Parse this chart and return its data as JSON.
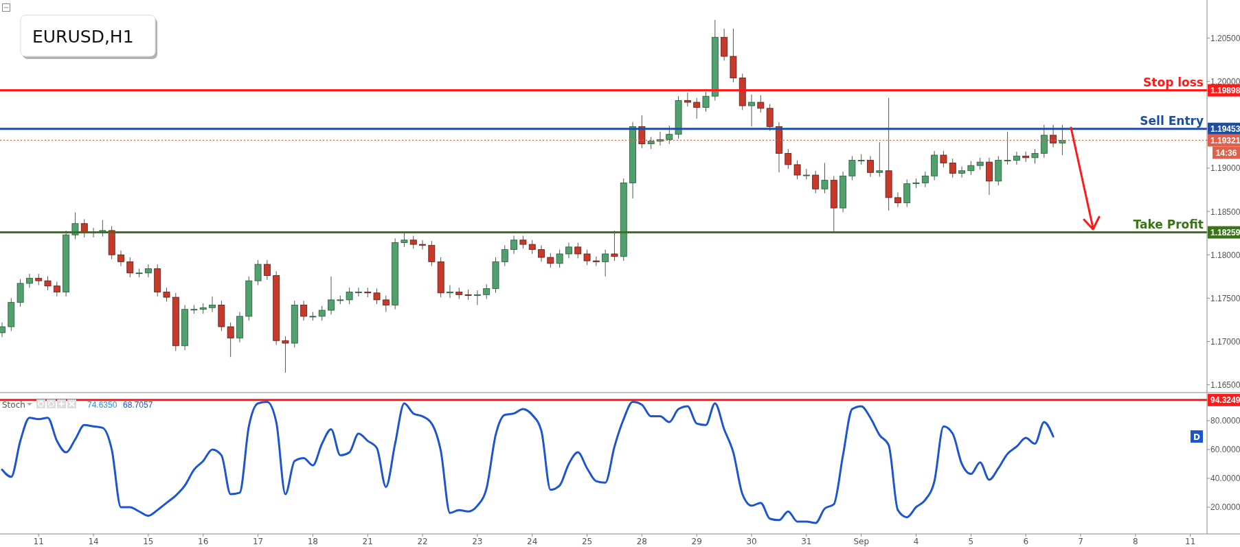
{
  "chart_data": [
    {
      "type": "candlestick",
      "title": "EURUSD,H1",
      "tick_labels": "y",
      "ylim": [
        1.1641,
        1.2094
      ],
      "annotations": [
        "14:36"
      ],
      "categories": [
        null,
        null,
        null,
        null,
        null,
        null,
        null,
        null,
        null,
        null,
        null,
        null,
        null,
        null,
        null,
        null,
        null,
        null,
        null,
        null,
        null,
        null,
        null,
        null,
        null,
        null,
        null,
        null,
        null,
        null,
        null,
        null,
        null,
        null,
        null,
        null,
        null,
        null,
        null,
        null,
        null,
        null,
        null,
        null,
        null,
        null,
        null,
        null,
        null,
        null,
        null,
        null,
        null,
        null,
        null,
        null,
        null,
        null,
        null,
        null,
        null,
        null,
        null,
        null,
        null,
        null,
        null,
        null,
        null,
        null,
        null,
        null,
        null,
        null,
        null,
        null,
        null,
        null,
        null,
        null,
        null,
        null,
        null,
        null,
        null,
        null,
        null,
        null,
        null,
        null,
        null,
        null,
        null,
        null,
        null,
        null,
        null,
        null,
        null,
        null,
        null,
        null,
        null,
        null,
        null,
        null,
        null,
        null,
        null,
        null,
        null,
        null,
        null,
        null,
        null,
        null,
        null,
        null,
        null,
        null,
        null,
        null,
        null,
        null,
        null,
        null,
        null,
        null,
        null,
        null,
        null,
        null
      ],
      "yticks": [
        {
          "value": 1.165,
          "label": "1.16500"
        },
        {
          "value": 1.17,
          "label": "1.17000"
        },
        {
          "value": 1.175,
          "label": "1.17500"
        },
        {
          "value": 1.18,
          "label": "1.18000"
        },
        {
          "value": 1.185,
          "label": "1.18500"
        },
        {
          "value": 1.19,
          "label": "1.19000"
        },
        {
          "value": 1.2,
          "label": "1.20000"
        },
        {
          "value": 1.205,
          "label": "1.20500"
        },
        {
          "value": 1.19898,
          "label": "1.19898"
        },
        {
          "value": 1.19453,
          "label": "1.19453"
        },
        {
          "value": 1.19321,
          "label": "1.19321"
        },
        {
          "value": 1.18259,
          "label": "1.18259"
        }
      ],
      "ref_lines": [
        {
          "axis": "y",
          "value": 1.19898,
          "label": "Stop loss",
          "color": "#ff1a1a"
        },
        {
          "axis": "y",
          "value": 1.19453,
          "label": "Sell Entry",
          "color": "#1d4f9e"
        },
        {
          "axis": "y",
          "value": 1.18259,
          "label": "Take Profit",
          "color": "#3a7417"
        },
        {
          "axis": "y",
          "value": 1.19321,
          "color": "#e0604c",
          "line_style": "dotted"
        }
      ],
      "ohlc": [
        [
          1.171,
          1.1722,
          1.1705,
          1.1717
        ],
        [
          1.1717,
          1.175,
          1.1712,
          1.1745
        ],
        [
          1.1745,
          1.1772,
          1.174,
          1.1767
        ],
        [
          1.1767,
          1.1778,
          1.1762,
          1.1773
        ],
        [
          1.1773,
          1.1778,
          1.1765,
          1.177
        ],
        [
          1.177,
          1.1775,
          1.1759,
          1.1764
        ],
        [
          1.1764,
          1.1769,
          1.1752,
          1.1757
        ],
        [
          1.1757,
          1.1828,
          1.1752,
          1.1823
        ],
        [
          1.1823,
          1.1849,
          1.1818,
          1.1836
        ],
        [
          1.1836,
          1.1841,
          1.182,
          1.1825
        ],
        [
          1.1825,
          1.1831,
          1.182,
          1.1826
        ],
        [
          1.1826,
          1.184,
          1.1821,
          1.1828
        ],
        [
          1.1828,
          1.1833,
          1.1795,
          1.18
        ],
        [
          1.18,
          1.1805,
          1.1787,
          1.1792
        ],
        [
          1.1792,
          1.1797,
          1.1774,
          1.1779
        ],
        [
          1.1779,
          1.1784,
          1.1774,
          1.1779
        ],
        [
          1.1779,
          1.1789,
          1.1774,
          1.1784
        ],
        [
          1.1784,
          1.1789,
          1.1752,
          1.1757
        ],
        [
          1.1757,
          1.1762,
          1.1746,
          1.1751
        ],
        [
          1.1751,
          1.1756,
          1.1689,
          1.1695
        ],
        [
          1.1695,
          1.1742,
          1.169,
          1.1737
        ],
        [
          1.1737,
          1.1742,
          1.1732,
          1.1737
        ],
        [
          1.1737,
          1.1744,
          1.1732,
          1.1739
        ],
        [
          1.1739,
          1.1752,
          1.1734,
          1.1742
        ],
        [
          1.1742,
          1.1747,
          1.1712,
          1.1717
        ],
        [
          1.1717,
          1.1722,
          1.1682,
          1.1704
        ],
        [
          1.1704,
          1.1734,
          1.1699,
          1.1729
        ],
        [
          1.1729,
          1.1775,
          1.1724,
          1.177
        ],
        [
          1.177,
          1.1794,
          1.1765,
          1.1789
        ],
        [
          1.1789,
          1.1794,
          1.1771,
          1.1776
        ],
        [
          1.1776,
          1.1781,
          1.1696,
          1.1701
        ],
        [
          1.1701,
          1.1706,
          1.1664,
          1.1698
        ],
        [
          1.1698,
          1.1747,
          1.1693,
          1.1742
        ],
        [
          1.1742,
          1.1747,
          1.1724,
          1.1729
        ],
        [
          1.1729,
          1.1734,
          1.1724,
          1.1729
        ],
        [
          1.1729,
          1.1741,
          1.1724,
          1.1736
        ],
        [
          1.1736,
          1.1775,
          1.1731,
          1.1748
        ],
        [
          1.1748,
          1.1753,
          1.1743,
          1.1748
        ],
        [
          1.1748,
          1.1762,
          1.1743,
          1.1757
        ],
        [
          1.1757,
          1.1762,
          1.1752,
          1.1757
        ],
        [
          1.1757,
          1.1762,
          1.1751,
          1.1756
        ],
        [
          1.1756,
          1.1761,
          1.1743,
          1.1748
        ],
        [
          1.1748,
          1.1753,
          1.1734,
          1.1742
        ],
        [
          1.1742,
          1.1819,
          1.1737,
          1.1814
        ],
        [
          1.1814,
          1.1826,
          1.1809,
          1.1817
        ],
        [
          1.1817,
          1.1822,
          1.1807,
          1.1812
        ],
        [
          1.1812,
          1.1817,
          1.1806,
          1.1811
        ],
        [
          1.1811,
          1.1816,
          1.1787,
          1.1792
        ],
        [
          1.1792,
          1.1797,
          1.1751,
          1.1756
        ],
        [
          1.1756,
          1.1765,
          1.175,
          1.1757
        ],
        [
          1.1757,
          1.1762,
          1.1749,
          1.1754
        ],
        [
          1.1754,
          1.176,
          1.1748,
          1.1753
        ],
        [
          1.1753,
          1.1759,
          1.1742,
          1.1754
        ],
        [
          1.1754,
          1.1766,
          1.1749,
          1.1761
        ],
        [
          1.1761,
          1.1797,
          1.1756,
          1.1792
        ],
        [
          1.1792,
          1.1811,
          1.1787,
          1.1806
        ],
        [
          1.1806,
          1.1822,
          1.1801,
          1.1817
        ],
        [
          1.1817,
          1.1822,
          1.1807,
          1.1812
        ],
        [
          1.1812,
          1.1817,
          1.1801,
          1.1806
        ],
        [
          1.1806,
          1.1811,
          1.1792,
          1.1797
        ],
        [
          1.1797,
          1.1802,
          1.1785,
          1.179
        ],
        [
          1.179,
          1.1806,
          1.1785,
          1.1801
        ],
        [
          1.1801,
          1.1814,
          1.1796,
          1.1809
        ],
        [
          1.1809,
          1.1814,
          1.1796,
          1.1801
        ],
        [
          1.1801,
          1.1806,
          1.1788,
          1.1793
        ],
        [
          1.1793,
          1.1798,
          1.1787,
          1.1792
        ],
        [
          1.1792,
          1.1806,
          1.1775,
          1.1801
        ],
        [
          1.1801,
          1.1828,
          1.1793,
          1.1798
        ],
        [
          1.1798,
          1.1888,
          1.1793,
          1.1883
        ],
        [
          1.1883,
          1.1953,
          1.1865,
          1.1948
        ],
        [
          1.1948,
          1.1961,
          1.1923,
          1.1928
        ],
        [
          1.1928,
          1.1936,
          1.1922,
          1.1931
        ],
        [
          1.1931,
          1.1942,
          1.1926,
          1.1933
        ],
        [
          1.1933,
          1.1949,
          1.1928,
          1.1939
        ],
        [
          1.1939,
          1.1983,
          1.1934,
          1.1978
        ],
        [
          1.1978,
          1.1987,
          1.1971,
          1.1976
        ],
        [
          1.1976,
          1.1981,
          1.1957,
          1.197
        ],
        [
          1.197,
          1.1988,
          1.1965,
          1.1983
        ],
        [
          1.1983,
          1.2071,
          1.1978,
          1.2051
        ],
        [
          1.2051,
          1.2061,
          1.2024,
          1.2029
        ],
        [
          1.2029,
          1.2061,
          1.1999,
          1.2004
        ],
        [
          1.2004,
          1.2009,
          1.1967,
          1.1972
        ],
        [
          1.1972,
          1.1985,
          1.1948,
          1.1976
        ],
        [
          1.1976,
          1.1984,
          1.1964,
          1.1969
        ],
        [
          1.1969,
          1.1974,
          1.1943,
          1.1948
        ],
        [
          1.1948,
          1.1953,
          1.1895,
          1.1917
        ],
        [
          1.1917,
          1.1922,
          1.1899,
          1.1904
        ],
        [
          1.1904,
          1.1909,
          1.1887,
          1.1892
        ],
        [
          1.1892,
          1.1899,
          1.1887,
          1.1892
        ],
        [
          1.1892,
          1.1897,
          1.1871,
          1.1876
        ],
        [
          1.1876,
          1.1906,
          1.1871,
          1.1886
        ],
        [
          1.1886,
          1.1891,
          1.1826,
          1.1854
        ],
        [
          1.1854,
          1.1896,
          1.1849,
          1.1891
        ],
        [
          1.1891,
          1.1914,
          1.1886,
          1.1909
        ],
        [
          1.1909,
          1.1916,
          1.1904,
          1.1909
        ],
        [
          1.1909,
          1.1914,
          1.189,
          1.1895
        ],
        [
          1.1895,
          1.193,
          1.189,
          1.1897
        ],
        [
          1.1897,
          1.1981,
          1.1851,
          1.1866
        ],
        [
          1.1866,
          1.1872,
          1.1855,
          1.186
        ],
        [
          1.186,
          1.1887,
          1.1855,
          1.1882
        ],
        [
          1.1882,
          1.1888,
          1.1877,
          1.1883
        ],
        [
          1.1883,
          1.1896,
          1.1878,
          1.1891
        ],
        [
          1.1891,
          1.192,
          1.1886,
          1.1915
        ],
        [
          1.1915,
          1.192,
          1.1901,
          1.1906
        ],
        [
          1.1906,
          1.1911,
          1.1889,
          1.1894
        ],
        [
          1.1894,
          1.1902,
          1.1889,
          1.1897
        ],
        [
          1.1897,
          1.1908,
          1.1892,
          1.1903
        ],
        [
          1.1903,
          1.1912,
          1.1898,
          1.1907
        ],
        [
          1.1907,
          1.1912,
          1.1869,
          1.1885
        ],
        [
          1.1885,
          1.1914,
          1.188,
          1.1909
        ],
        [
          1.1909,
          1.1942,
          1.1904,
          1.1909
        ],
        [
          1.1909,
          1.1919,
          1.1904,
          1.1914
        ],
        [
          1.1914,
          1.1919,
          1.1907,
          1.1912
        ],
        [
          1.1912,
          1.1922,
          1.1905,
          1.1917
        ],
        [
          1.1917,
          1.195,
          1.1912,
          1.1938
        ],
        [
          1.1938,
          1.195,
          1.1924,
          1.1929
        ],
        [
          1.1929,
          1.195,
          1.1915,
          1.1932
        ],
        null,
        null,
        null,
        null,
        null,
        null,
        null,
        null,
        null,
        null,
        null,
        null,
        null,
        null,
        null
      ]
    },
    {
      "type": "line",
      "title": "Stoch",
      "annotations": [
        "74.6350",
        "68.7057"
      ],
      "ylim": [
        1.4,
        99
      ],
      "categories": [
        null,
        null,
        null,
        null,
        "11",
        null,
        null,
        null,
        null,
        null,
        "14",
        null,
        null,
        null,
        null,
        null,
        "15",
        null,
        null,
        null,
        null,
        null,
        "16",
        null,
        null,
        null,
        null,
        null,
        "17",
        null,
        null,
        null,
        null,
        null,
        "18",
        null,
        null,
        null,
        null,
        null,
        "21",
        null,
        null,
        null,
        null,
        null,
        "22",
        null,
        null,
        null,
        null,
        null,
        "23",
        null,
        null,
        null,
        null,
        null,
        "24",
        null,
        null,
        null,
        null,
        null,
        "25",
        null,
        null,
        null,
        null,
        null,
        "28",
        null,
        null,
        null,
        null,
        null,
        "29",
        null,
        null,
        null,
        null,
        null,
        "30",
        null,
        null,
        null,
        null,
        null,
        "31",
        null,
        null,
        null,
        null,
        null,
        "Sep",
        null,
        null,
        null,
        null,
        null,
        "4",
        null,
        null,
        null,
        null,
        null,
        "5",
        null,
        null,
        null,
        null,
        null,
        "6",
        null,
        null,
        null,
        null,
        null,
        "7",
        null,
        null,
        null,
        null,
        null,
        "8",
        null,
        null,
        null,
        null,
        null,
        "11",
        null
      ],
      "yticks": [
        {
          "value": 20,
          "label": "20.0000"
        },
        {
          "value": 40,
          "label": "40.0000"
        },
        {
          "value": 60,
          "label": "60.0000"
        },
        {
          "value": 80,
          "label": "80.0000"
        },
        {
          "value": 94.3249,
          "label": "94.3249"
        }
      ],
      "ref_lines": [
        {
          "axis": "y",
          "value": 94.3249,
          "color": "#ff1a1a"
        }
      ],
      "series": [
        {
          "name": "D",
          "color": "#1c55d0",
          "values": [
            46,
            41,
            66,
            82,
            81,
            82,
            66,
            58,
            67,
            77,
            76,
            75,
            60,
            20,
            20,
            17,
            14,
            18,
            23,
            28,
            35,
            46,
            52,
            60,
            56,
            29,
            30,
            76,
            92,
            93,
            79,
            29,
            52,
            54,
            49,
            64,
            74,
            56,
            58,
            71,
            66,
            61,
            34,
            64,
            92,
            85,
            83,
            78,
            59,
            16,
            18,
            17,
            21,
            33,
            70,
            84,
            85,
            88,
            84,
            73,
            32,
            35,
            50,
            58,
            47,
            38,
            37,
            62,
            81,
            93,
            91,
            83,
            83,
            79,
            88,
            90,
            78,
            77,
            92,
            74,
            58,
            29,
            21,
            23,
            12,
            11,
            17,
            10,
            10,
            9,
            19,
            22,
            56,
            88,
            90,
            82,
            70,
            63,
            18,
            13,
            20,
            25,
            38,
            76,
            71,
            50,
            43,
            51,
            39,
            47,
            57,
            62,
            68,
            64,
            79,
            69,
            null,
            null,
            null,
            null,
            null,
            null,
            null,
            null,
            null,
            null,
            null,
            null,
            null,
            null,
            null,
            null
          ]
        }
      ]
    }
  ]
}
